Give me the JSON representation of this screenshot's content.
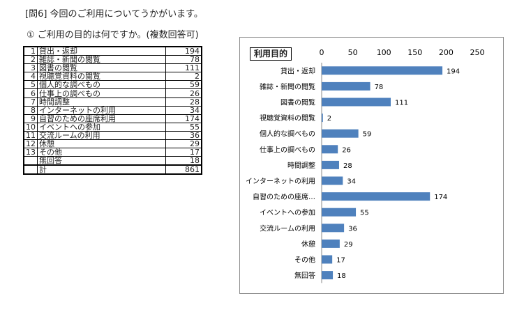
{
  "header": {
    "question": "[問6] 今回のご利用についてうかがいます。",
    "sub_question": "① ご利用の目的は何ですか。(複数回答可)"
  },
  "table": {
    "rows": [
      {
        "num": "1",
        "label": "貸出・返却",
        "value": "194"
      },
      {
        "num": "2",
        "label": "雑誌・新聞の閲覧",
        "value": "78"
      },
      {
        "num": "3",
        "label": "図書の閲覧",
        "value": "111"
      },
      {
        "num": "4",
        "label": "視聴覚資料の閲覧",
        "value": "2"
      },
      {
        "num": "5",
        "label": "個人的な調べもの",
        "value": "59"
      },
      {
        "num": "6",
        "label": "仕事上の調べもの",
        "value": "26"
      },
      {
        "num": "7",
        "label": "時間調整",
        "value": "28"
      },
      {
        "num": "8",
        "label": "インターネットの利用",
        "value": "34"
      },
      {
        "num": "9",
        "label": "自習のための座席利用",
        "value": "174"
      },
      {
        "num": "10",
        "label": "イベントへの参加",
        "value": "55"
      },
      {
        "num": "11",
        "label": "交流ルームの利用",
        "value": "36"
      },
      {
        "num": "12",
        "label": "休憩",
        "value": "29"
      },
      {
        "num": "13",
        "label": "その他",
        "value": "17"
      },
      {
        "num": "",
        "label": "無回答",
        "value": "18"
      }
    ],
    "total": {
      "label": "計",
      "value": "861"
    }
  },
  "chart_data": {
    "type": "bar",
    "orientation": "horizontal",
    "title": "利用目的",
    "categories": [
      "貸出・返却",
      "雑誌・新聞の閲覧",
      "図書の閲覧",
      "視聴覚資料の閲覧",
      "個人的な調べもの",
      "仕事上の調べもの",
      "時間調整",
      "インターネットの利用",
      "自習のための座席…",
      "イベントへの参加",
      "交流ルームの利用",
      "休憩",
      "その他",
      "無回答"
    ],
    "values": [
      194,
      78,
      111,
      2,
      59,
      26,
      28,
      34,
      174,
      55,
      36,
      29,
      17,
      18
    ],
    "xlim": [
      0,
      250
    ],
    "ticks": [
      0,
      50,
      100,
      150,
      200,
      250
    ],
    "axis_position": "top",
    "grid": false,
    "bar_color": "#4f81bd"
  }
}
